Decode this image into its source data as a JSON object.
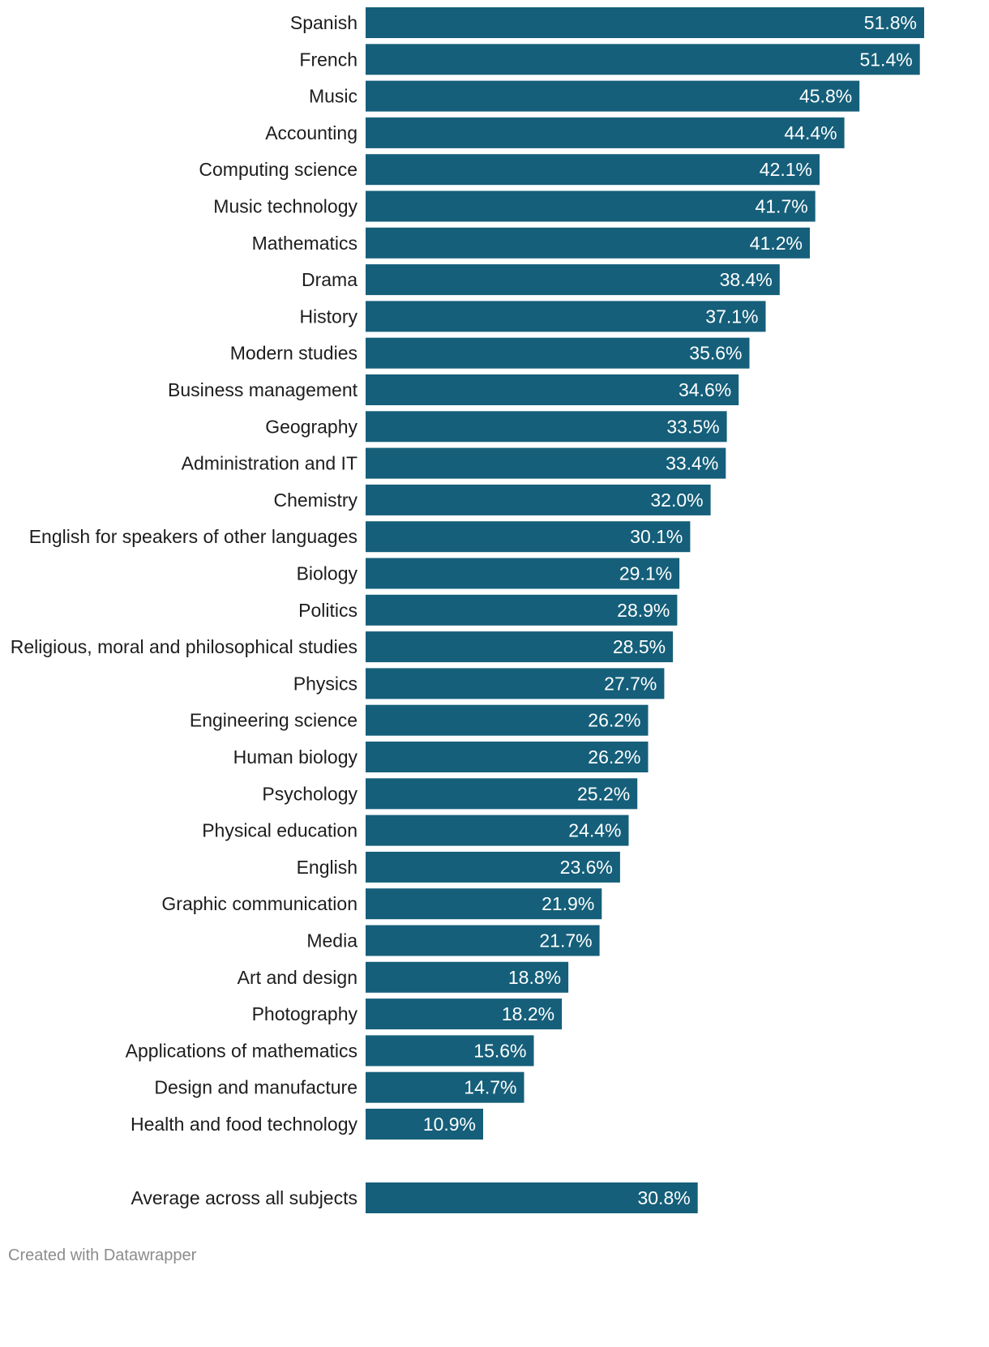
{
  "chart_data": {
    "type": "bar",
    "orientation": "horizontal",
    "categories": [
      "Spanish",
      "French",
      "Music",
      "Accounting",
      "Computing science",
      "Music technology",
      "Mathematics",
      "Drama",
      "History",
      "Modern studies",
      "Business management",
      "Geography",
      "Administration and IT",
      "Chemistry",
      "English for speakers of other languages",
      "Biology",
      "Politics",
      "Religious, moral and philosophical studies",
      "Physics",
      "Engineering science",
      "Human biology",
      "Psychology",
      "Physical education",
      "English",
      "Graphic communication",
      "Media",
      "Art and design",
      "Photography",
      "Applications of mathematics",
      "Design and manufacture",
      "Health and food technology"
    ],
    "values": [
      51.8,
      51.4,
      45.8,
      44.4,
      42.1,
      41.7,
      41.2,
      38.4,
      37.1,
      35.6,
      34.6,
      33.5,
      33.4,
      32.0,
      30.1,
      29.1,
      28.9,
      28.5,
      27.7,
      26.2,
      26.2,
      25.2,
      24.4,
      23.6,
      21.9,
      21.7,
      18.8,
      18.2,
      15.6,
      14.7,
      10.9
    ],
    "value_labels": [
      "51.8%",
      "51.4%",
      "45.8%",
      "44.4%",
      "42.1%",
      "41.7%",
      "41.2%",
      "38.4%",
      "37.1%",
      "35.6%",
      "34.6%",
      "33.5%",
      "33.4%",
      "32.0%",
      "30.1%",
      "29.1%",
      "28.9%",
      "28.5%",
      "27.7%",
      "26.2%",
      "26.2%",
      "25.2%",
      "24.4%",
      "23.6%",
      "21.9%",
      "21.7%",
      "18.8%",
      "18.2%",
      "15.6%",
      "14.7%",
      "10.9%"
    ],
    "summary": {
      "label": "Average across all subjects",
      "value": 30.8,
      "value_label": "30.8%"
    },
    "unit": "%",
    "xlim": [
      0,
      51.8
    ],
    "bar_color": "#155f7a",
    "title": "",
    "xlabel": "",
    "ylabel": "",
    "grid": false
  },
  "footer": {
    "credit": "Created with Datawrapper"
  }
}
